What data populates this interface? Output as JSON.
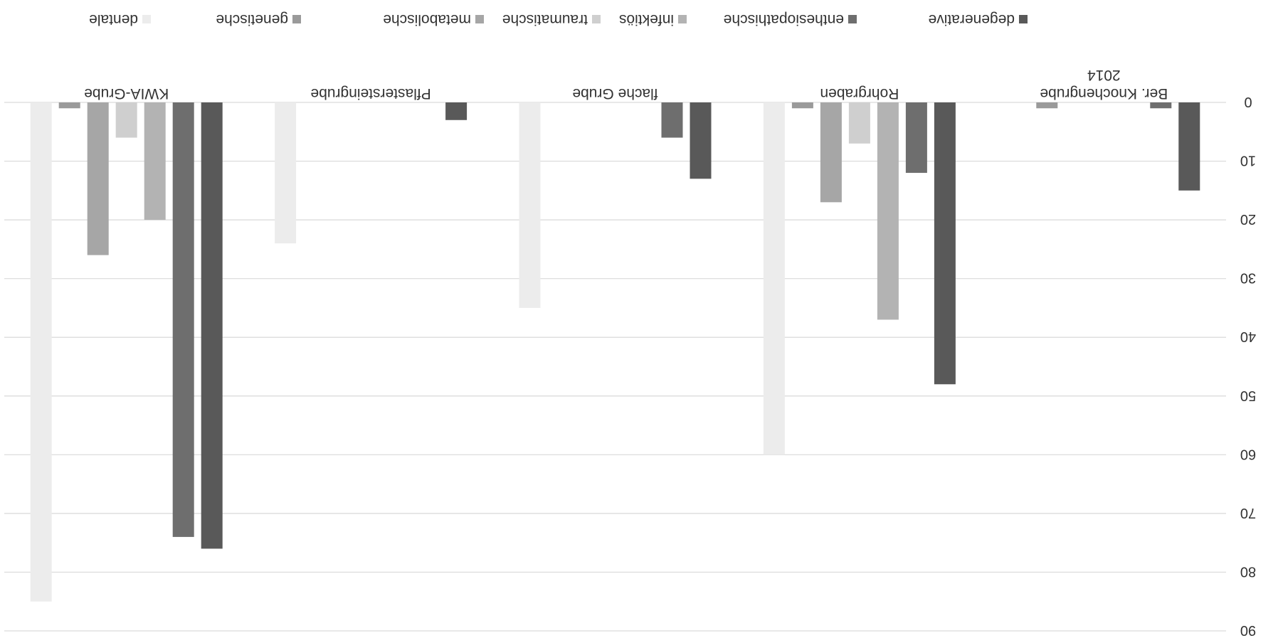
{
  "chart_data": {
    "type": "bar",
    "categories": [
      "Ber. Knochengrube\n2014",
      "Rohrgraben",
      "flache Grube",
      "Pflastersteingrube",
      "KWIA-Grube"
    ],
    "series": [
      {
        "name": "degenerative",
        "color": "#595959",
        "values": [
          15,
          48,
          13,
          3,
          76
        ]
      },
      {
        "name": "enthesiopathische",
        "color": "#6e6e6e",
        "values": [
          1,
          12,
          6,
          0,
          74
        ]
      },
      {
        "name": "infektiös",
        "color": "#b3b3b3",
        "values": [
          0,
          37,
          0,
          0,
          20
        ]
      },
      {
        "name": "traumatische",
        "color": "#cfcfcf",
        "values": [
          0,
          7,
          0,
          0,
          6
        ]
      },
      {
        "name": "metabolische",
        "color": "#a6a6a6",
        "values": [
          0,
          17,
          0,
          0,
          26
        ]
      },
      {
        "name": "genetische",
        "color": "#9a9a9a",
        "values": [
          1,
          1,
          0,
          0,
          1
        ]
      },
      {
        "name": "dentale",
        "color": "#ececec",
        "values": [
          0,
          60,
          35,
          24,
          85
        ]
      }
    ],
    "yticks": [
      "0",
      "10",
      "20",
      "30",
      "40",
      "50",
      "60",
      "70",
      "80",
      "90"
    ],
    "ylim": [
      0,
      90
    ],
    "grid": true,
    "legend": "top"
  }
}
